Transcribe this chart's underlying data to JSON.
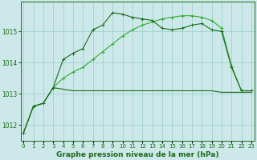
{
  "title": "Graphe pression niveau de la mer (hPa)",
  "background_color": "#cce8e8",
  "grid_color": "#99cccc",
  "dark_green": "#1a6b1a",
  "light_green": "#33aa33",
  "x": [
    0,
    1,
    2,
    3,
    4,
    5,
    6,
    7,
    8,
    9,
    10,
    11,
    12,
    13,
    14,
    15,
    16,
    17,
    18,
    19,
    20,
    21,
    22,
    23
  ],
  "y_flat": [
    1011.75,
    1012.6,
    1012.7,
    1013.2,
    1013.15,
    1013.1,
    1013.1,
    1013.1,
    1013.1,
    1013.1,
    1013.1,
    1013.1,
    1013.1,
    1013.1,
    1013.1,
    1013.1,
    1013.1,
    1013.1,
    1013.1,
    1013.1,
    1013.05,
    1013.05,
    1013.05,
    1013.05
  ],
  "y_ramp": [
    1011.75,
    1012.6,
    1012.7,
    1013.2,
    1013.5,
    1013.7,
    1013.85,
    1014.1,
    1014.35,
    1014.6,
    1014.85,
    1015.05,
    1015.2,
    1015.3,
    1015.4,
    1015.45,
    1015.5,
    1015.5,
    1015.45,
    1015.35,
    1015.1,
    1013.9,
    1013.1,
    1013.1
  ],
  "y_wavy": [
    1011.75,
    1012.6,
    1012.7,
    1013.2,
    1014.1,
    1014.3,
    1014.45,
    1015.05,
    1015.2,
    1015.6,
    1015.55,
    1015.45,
    1015.4,
    1015.35,
    1015.1,
    1015.05,
    1015.1,
    1015.2,
    1015.25,
    1015.05,
    1015.0,
    1013.85,
    1013.1,
    1013.1
  ],
  "ylim": [
    1011.5,
    1015.95
  ],
  "yticks": [
    1012,
    1013,
    1014,
    1015
  ],
  "figsize": [
    3.2,
    2.0
  ],
  "dpi": 100
}
